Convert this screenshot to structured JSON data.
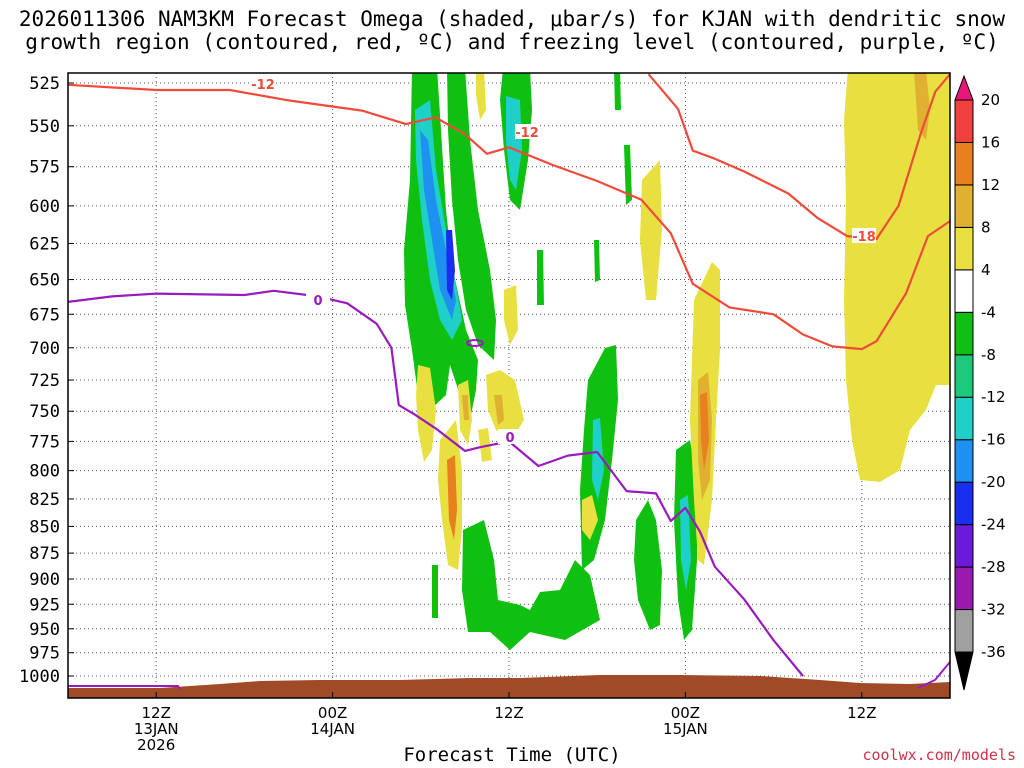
{
  "title": {
    "line1": "2026011306 NAM3KM Forecast Omega (shaded, μbar/s) for KJAN with dendritic snow",
    "line2": "growth region (contoured, red, ºC) and freezing level (contoured, purple, ºC)"
  },
  "credit": "coolwx.com/models",
  "chart_data": {
    "type": "heatmap",
    "description_axes": "time-height cross section",
    "xlabel": "Forecast Time (UTC)",
    "ylabel": "",
    "y_scale": "log-pressure (hPa), inverted",
    "y_ticks": [
      525,
      550,
      575,
      600,
      625,
      650,
      675,
      700,
      725,
      750,
      775,
      800,
      825,
      850,
      875,
      900,
      925,
      950,
      975,
      1000
    ],
    "x_range_hours": [
      -3,
      57
    ],
    "x_ticks": [
      {
        "hour": 3,
        "lines": [
          "12Z",
          "13JAN",
          "2026"
        ]
      },
      {
        "hour": 15,
        "lines": [
          "00Z",
          "14JAN"
        ]
      },
      {
        "hour": 27,
        "lines": [
          "12Z"
        ]
      },
      {
        "hour": 39,
        "lines": [
          "00Z",
          "15JAN"
        ]
      },
      {
        "hour": 51,
        "lines": [
          "12Z"
        ]
      }
    ],
    "grid": true,
    "colorbar": {
      "unit": "μbar/s",
      "bins": [
        {
          "label": "-36",
          "color": "#000000"
        },
        {
          "label": "-32",
          "color": "#a0a0a0"
        },
        {
          "label": "-28",
          "color": "#9a1ab0"
        },
        {
          "label": "-24",
          "color": "#6a1ad8"
        },
        {
          "label": "-20",
          "color": "#1a2ef0"
        },
        {
          "label": "-16",
          "color": "#1e90f0"
        },
        {
          "label": "-12",
          "color": "#1ed0c8"
        },
        {
          "label": "-8",
          "color": "#1ec87a"
        },
        {
          "label": "-4",
          "color": "#10c010"
        },
        {
          "label": "4",
          "color": "#ffffff"
        },
        {
          "label": "8",
          "color": "#e8e040"
        },
        {
          "label": "12",
          "color": "#e0b030"
        },
        {
          "label": "16",
          "color": "#e88020"
        },
        {
          "label": "20",
          "color": "#f04040"
        },
        {
          "label": "",
          "color": "#e8187a"
        }
      ],
      "colorbar_labels": [
        "20",
        "16",
        "12",
        "8",
        "4",
        "-4",
        "-8",
        "-12",
        "-16",
        "-20",
        "-24",
        "-28",
        "-32",
        "-36"
      ]
    },
    "contours": {
      "dgz_red": {
        "color": "#f04a3a",
        "labels": [
          "-12",
          "-12",
          "-18"
        ],
        "minus12_line": [
          {
            "hour": -3,
            "p": 526
          },
          {
            "hour": 3,
            "p": 529
          },
          {
            "hour": 8,
            "p": 529
          },
          {
            "hour": 12,
            "p": 535
          },
          {
            "hour": 17,
            "p": 541
          },
          {
            "hour": 20,
            "p": 549
          },
          {
            "hour": 22,
            "p": 545
          },
          {
            "hour": 24,
            "p": 555
          },
          {
            "hour": 25.5,
            "p": 567
          },
          {
            "hour": 27,
            "p": 563
          },
          {
            "hour": 30,
            "p": 574
          },
          {
            "hour": 33,
            "p": 584
          },
          {
            "hour": 36,
            "p": 596
          },
          {
            "hour": 38,
            "p": 618
          },
          {
            "hour": 39.5,
            "p": 653
          },
          {
            "hour": 42,
            "p": 670
          },
          {
            "hour": 45,
            "p": 675
          },
          {
            "hour": 47,
            "p": 690
          },
          {
            "hour": 49,
            "p": 699
          },
          {
            "hour": 51,
            "p": 701
          },
          {
            "hour": 52,
            "p": 695
          },
          {
            "hour": 54,
            "p": 660
          },
          {
            "hour": 55.5,
            "p": 620
          },
          {
            "hour": 57,
            "p": 610
          }
        ],
        "minus18_line": [
          {
            "hour": 36.5,
            "p": 520
          },
          {
            "hour": 38.5,
            "p": 540
          },
          {
            "hour": 39.5,
            "p": 565
          },
          {
            "hour": 41,
            "p": 570
          },
          {
            "hour": 43,
            "p": 578
          },
          {
            "hour": 46,
            "p": 592
          },
          {
            "hour": 48,
            "p": 608
          },
          {
            "hour": 50,
            "p": 620
          },
          {
            "hour": 52,
            "p": 622
          },
          {
            "hour": 53.5,
            "p": 600
          },
          {
            "hour": 55,
            "p": 555
          },
          {
            "hour": 56,
            "p": 530
          },
          {
            "hour": 57,
            "p": 520
          }
        ]
      },
      "freezing_purple": {
        "color": "#9a1ac0",
        "labels": [
          "0",
          "0"
        ],
        "line": [
          {
            "hour": -3,
            "p": 666
          },
          {
            "hour": 0,
            "p": 662
          },
          {
            "hour": 3,
            "p": 660
          },
          {
            "hour": 9,
            "p": 661
          },
          {
            "hour": 11,
            "p": 658
          },
          {
            "hour": 14,
            "p": 662
          },
          {
            "hour": 16,
            "p": 667
          },
          {
            "hour": 18,
            "p": 682
          },
          {
            "hour": 19,
            "p": 700
          },
          {
            "hour": 19.5,
            "p": 745
          },
          {
            "hour": 20.5,
            "p": 752
          },
          {
            "hour": 22,
            "p": 764
          },
          {
            "hour": 24,
            "p": 783
          },
          {
            "hour": 25,
            "p": 780
          },
          {
            "hour": 27,
            "p": 775
          },
          {
            "hour": 29,
            "p": 796
          },
          {
            "hour": 31,
            "p": 787
          },
          {
            "hour": 33,
            "p": 784
          },
          {
            "hour": 35,
            "p": 818
          },
          {
            "hour": 37,
            "p": 820
          },
          {
            "hour": 38,
            "p": 845
          },
          {
            "hour": 39,
            "p": 833
          },
          {
            "hour": 40,
            "p": 855
          },
          {
            "hour": 41,
            "p": 888
          },
          {
            "hour": 43,
            "p": 920
          },
          {
            "hour": 45,
            "p": 962
          },
          {
            "hour": 47,
            "p": 1000
          }
        ]
      }
    }
  }
}
